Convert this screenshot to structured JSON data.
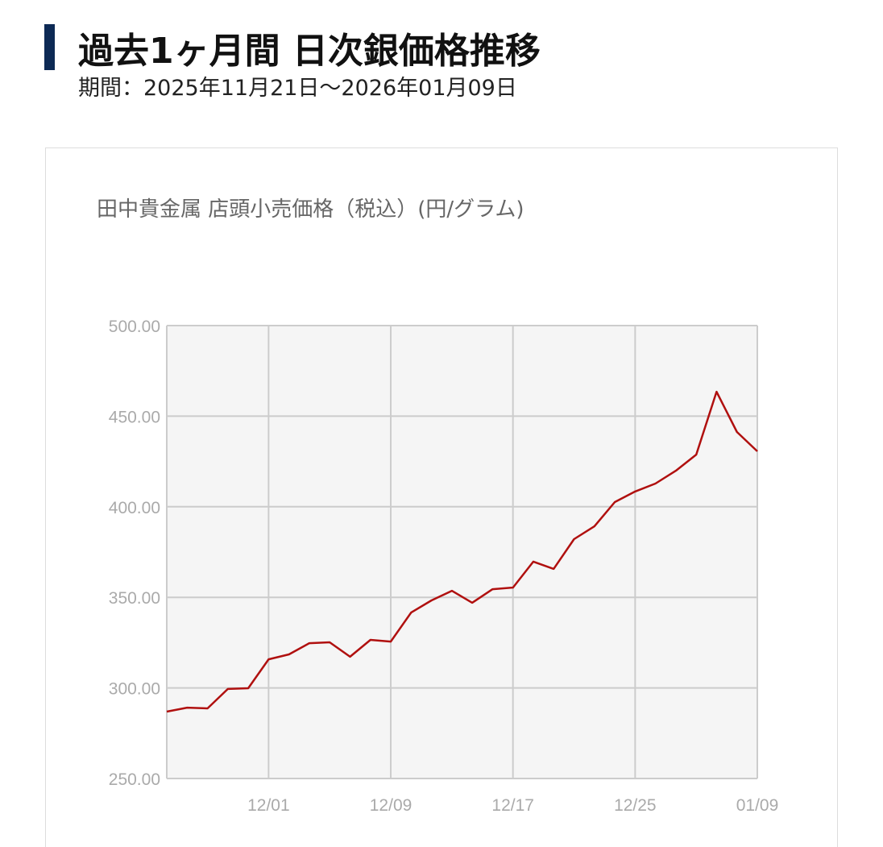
{
  "header": {
    "title": "過去1ヶ月間 日次銀価格推移",
    "period": "期間：2025年11月21日～2026年01月09日"
  },
  "chart_data": {
    "type": "line",
    "title": "田中貴金属 店頭小売価格（税込）(円/グラム)",
    "categories": [
      null,
      null,
      null,
      null,
      null,
      "12/01",
      null,
      null,
      null,
      null,
      null,
      "12/09",
      null,
      null,
      null,
      null,
      null,
      "12/17",
      null,
      null,
      null,
      null,
      null,
      "12/25",
      null,
      null,
      null,
      null,
      null,
      "01/09"
    ],
    "series": [
      {
        "name": "田中貴金属 店頭小売価格（税込）",
        "color": "#b0100f",
        "values": [
          286.9,
          289.1,
          288.7,
          299.4,
          299.8,
          315.8,
          318.5,
          324.7,
          325.2,
          317.2,
          326.5,
          325.6,
          341.6,
          348.3,
          353.6,
          347.0,
          354.5,
          355.4,
          369.7,
          365.7,
          382.1,
          389.2,
          402.6,
          408.4,
          412.8,
          419.9,
          428.8,
          463.5,
          441.3,
          430.6
        ]
      }
    ],
    "ylim": [
      250,
      500
    ],
    "yticks": [
      {
        "value": 250,
        "label": "250.00"
      },
      {
        "value": 300,
        "label": "300.00"
      },
      {
        "value": 350,
        "label": "350.00"
      },
      {
        "value": 400,
        "label": "400.00"
      },
      {
        "value": 450,
        "label": "450.00"
      },
      {
        "value": 500,
        "label": "500.00"
      }
    ],
    "grid": true
  }
}
